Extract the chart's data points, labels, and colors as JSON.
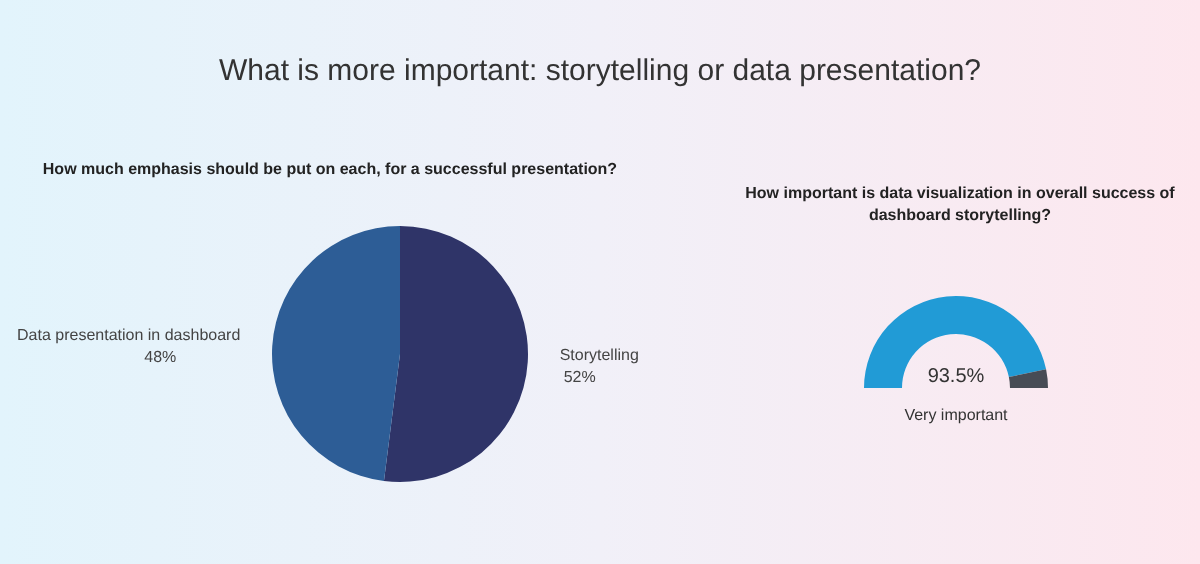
{
  "chart_data": [
    {
      "type": "other",
      "title": "What is more important: storytelling or data presentation?"
    },
    {
      "type": "pie",
      "title": "How much emphasis should be put on each, for a successful presentation?",
      "categories": [
        "Storytelling",
        "Data presentation in dashboard"
      ],
      "values": [
        52,
        48
      ],
      "colors": [
        "#2f3468",
        "#2d5d96"
      ],
      "value_labels": [
        "52%",
        "48%"
      ]
    },
    {
      "type": "donut",
      "title": "How important is data visualization in overall success of dashboard storytelling?",
      "categories": [
        null,
        null
      ],
      "values": [
        93.5,
        6.5
      ],
      "colors": [
        "#219bd6",
        "#474c55"
      ],
      "value_labels": [
        "93.5%",
        null
      ],
      "annotations": [
        "Very important"
      ]
    }
  ]
}
